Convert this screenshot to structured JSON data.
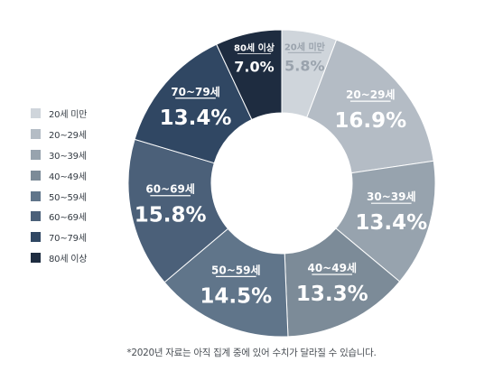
{
  "chart_data": {
    "type": "pie",
    "style": "donut",
    "legend_position": "left",
    "categories": [
      "20세 미만",
      "20~29세",
      "30~39세",
      "40~49세",
      "50~59세",
      "60~69세",
      "70~79세",
      "80세 이상"
    ],
    "values": [
      5.8,
      16.9,
      13.4,
      13.3,
      14.5,
      15.8,
      13.4,
      7.0
    ],
    "value_labels": [
      "5.8%",
      "16.9%",
      "13.4%",
      "13.3%",
      "14.5%",
      "15.8%",
      "13.4%",
      "7.0%"
    ],
    "colors": [
      "#cfd5db",
      "#b4bcc5",
      "#97a3ae",
      "#7c8b98",
      "#60758a",
      "#4b6079",
      "#304763",
      "#1e2c40"
    ],
    "label_colors": [
      "#9aa3ad",
      "#ffffff",
      "#ffffff",
      "#ffffff",
      "#ffffff",
      "#ffffff",
      "#ffffff",
      "#ffffff"
    ]
  },
  "footnote": "*2020년 자료는 아직 집계 중에 있어 수치가 달라질 수 있습니다."
}
